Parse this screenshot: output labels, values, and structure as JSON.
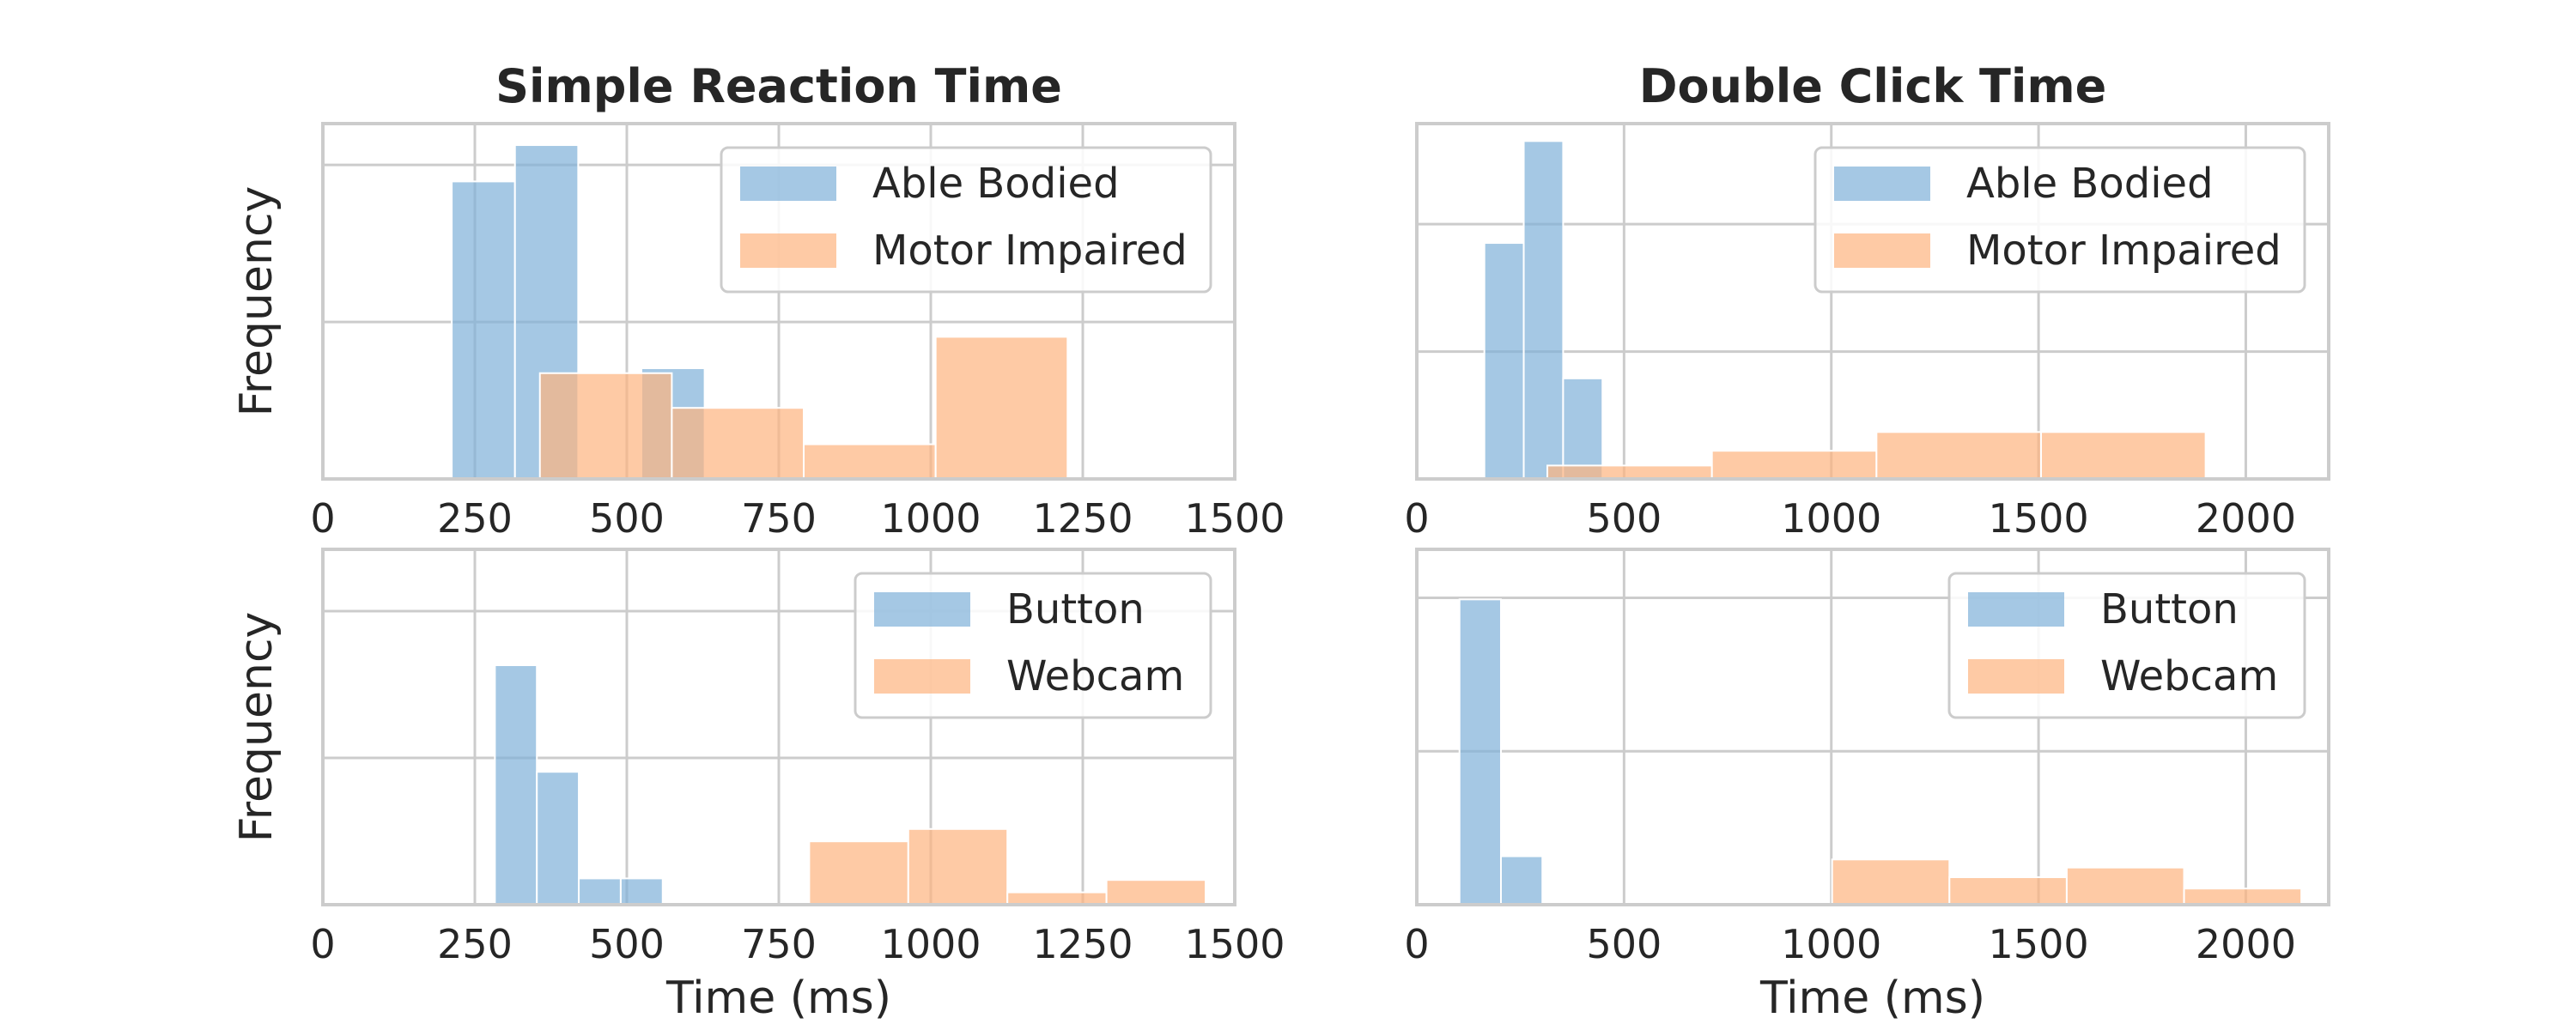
{
  "chart_data": [
    {
      "type": "bar",
      "subtype": "histogram",
      "title": "Simple Reaction Time",
      "ylabel": "Frequency",
      "xlabel": "",
      "xlim": [
        0,
        1500
      ],
      "xticks": [
        0,
        250,
        500,
        750,
        1000,
        1250,
        1500
      ],
      "yticks": [
        0,
        0.95,
        1.9
      ],
      "ytick_labels_shown": false,
      "ylim": [
        0,
        2.15
      ],
      "grid": true,
      "legend_position": "top-right",
      "series": [
        {
          "name": "Able Bodied",
          "color": "#7fb0d8",
          "bins": [
            {
              "x0": 212,
              "x1": 316,
              "count": 1.8
            },
            {
              "x0": 316,
              "x1": 420,
              "count": 2.02
            },
            {
              "x0": 420,
              "x1": 524,
              "count": 0
            },
            {
              "x0": 524,
              "x1": 628,
              "count": 0.67
            }
          ]
        },
        {
          "name": "Motor Impaired",
          "color": "#fdb47f",
          "bins": [
            {
              "x0": 357,
              "x1": 574,
              "count": 0.64
            },
            {
              "x0": 574,
              "x1": 791,
              "count": 0.43
            },
            {
              "x0": 791,
              "x1": 1008,
              "count": 0.21
            },
            {
              "x0": 1008,
              "x1": 1225,
              "count": 0.86
            }
          ]
        }
      ]
    },
    {
      "type": "bar",
      "subtype": "histogram",
      "title": "Double Click Time",
      "ylabel": "",
      "xlabel": "",
      "xlim": [
        0,
        2200
      ],
      "xticks": [
        0,
        500,
        1000,
        1500,
        2000
      ],
      "yticks": [
        0,
        0.95,
        1.9
      ],
      "ytick_labels_shown": false,
      "ylim": [
        0,
        2.65
      ],
      "grid": true,
      "legend_position": "top-right",
      "series": [
        {
          "name": "Able Bodied",
          "color": "#7fb0d8",
          "bins": [
            {
              "x0": 163,
              "x1": 258,
              "count": 1.76
            },
            {
              "x0": 258,
              "x1": 353,
              "count": 2.52
            },
            {
              "x0": 353,
              "x1": 448,
              "count": 0.75
            }
          ]
        },
        {
          "name": "Motor Impaired",
          "color": "#fdb47f",
          "bins": [
            {
              "x0": 315,
              "x1": 712,
              "count": 0.1
            },
            {
              "x0": 712,
              "x1": 1109,
              "count": 0.21
            },
            {
              "x0": 1109,
              "x1": 1506,
              "count": 0.35
            },
            {
              "x0": 1506,
              "x1": 1903,
              "count": 0.35
            }
          ]
        }
      ]
    },
    {
      "type": "bar",
      "subtype": "histogram",
      "title": "",
      "ylabel": "Frequency",
      "xlabel": "Time (ms)",
      "xlim": [
        0,
        1500
      ],
      "xticks": [
        0,
        250,
        500,
        750,
        1000,
        1250,
        1500
      ],
      "yticks": [
        0,
        0.95,
        1.9
      ],
      "ytick_labels_shown": false,
      "ylim": [
        0,
        2.3
      ],
      "grid": true,
      "legend_position": "top-right",
      "series": [
        {
          "name": "Button",
          "color": "#7fb0d8",
          "bins": [
            {
              "x0": 283,
              "x1": 352,
              "count": 1.55
            },
            {
              "x0": 352,
              "x1": 421,
              "count": 0.86
            },
            {
              "x0": 421,
              "x1": 490,
              "count": 0.17
            },
            {
              "x0": 490,
              "x1": 559,
              "count": 0.17
            }
          ]
        },
        {
          "name": "Webcam",
          "color": "#fdb47f",
          "bins": [
            {
              "x0": 800,
              "x1": 963,
              "count": 0.41
            },
            {
              "x0": 963,
              "x1": 1126,
              "count": 0.49
            },
            {
              "x0": 1126,
              "x1": 1289,
              "count": 0.08
            },
            {
              "x0": 1289,
              "x1": 1452,
              "count": 0.16
            }
          ]
        }
      ]
    },
    {
      "type": "bar",
      "subtype": "histogram",
      "title": "",
      "ylabel": "",
      "xlabel": "Time (ms)",
      "xlim": [
        0,
        2200
      ],
      "xticks": [
        0,
        500,
        1000,
        1500,
        2000
      ],
      "yticks": [
        0,
        0.95,
        1.9
      ],
      "ytick_labels_shown": false,
      "ylim": [
        0,
        2.2
      ],
      "grid": true,
      "legend_position": "top-right",
      "series": [
        {
          "name": "Button",
          "color": "#7fb0d8",
          "bins": [
            {
              "x0": 103,
              "x1": 203,
              "count": 1.89
            },
            {
              "x0": 203,
              "x1": 303,
              "count": 0.3
            }
          ]
        },
        {
          "name": "Webcam",
          "color": "#fdb47f",
          "bins": [
            {
              "x0": 1002,
              "x1": 1285,
              "count": 0.28
            },
            {
              "x0": 1285,
              "x1": 1568,
              "count": 0.17
            },
            {
              "x0": 1568,
              "x1": 1851,
              "count": 0.23
            },
            {
              "x0": 1851,
              "x1": 2134,
              "count": 0.1
            }
          ]
        }
      ]
    }
  ]
}
